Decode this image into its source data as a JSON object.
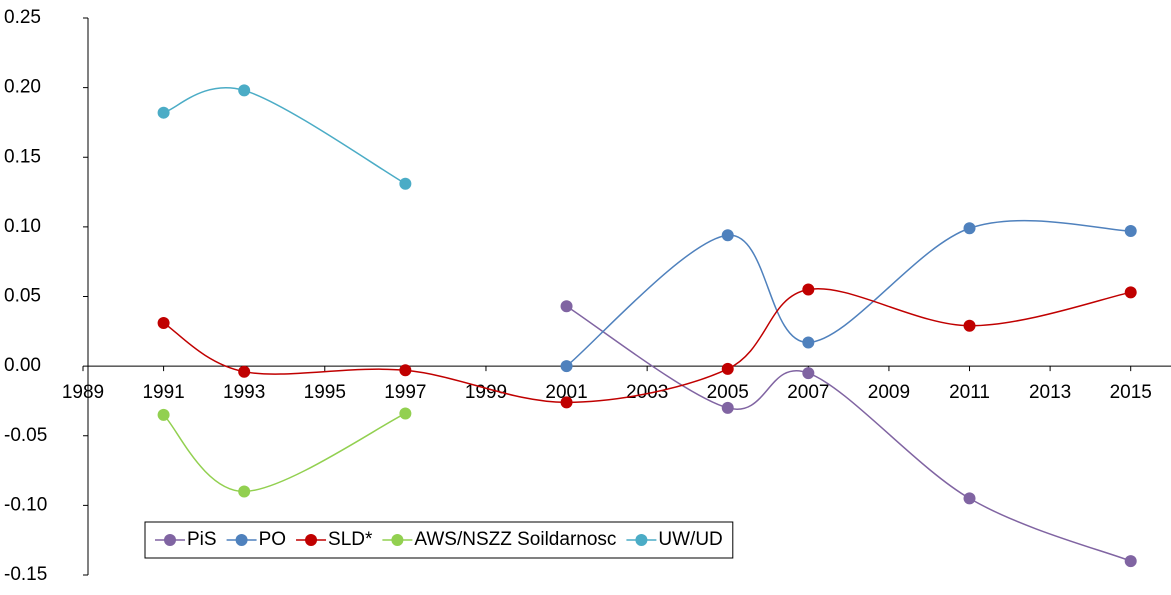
{
  "chart_data": {
    "type": "line",
    "smooth": true,
    "x": [
      1991,
      1993,
      1997,
      2001,
      2005,
      2007,
      2011,
      2015
    ],
    "xlim": [
      1989,
      2016
    ],
    "xticks": [
      1989,
      1991,
      1993,
      1995,
      1997,
      1999,
      2001,
      2003,
      2005,
      2007,
      2009,
      2011,
      2013,
      2015
    ],
    "ylim": [
      -0.15,
      0.25
    ],
    "yticks": [
      {
        "value": -0.15,
        "label": "-0.15"
      },
      {
        "value": -0.1,
        "label": "-0.10"
      },
      {
        "value": -0.05,
        "label": "-0.05"
      },
      {
        "value": 0,
        "label": "0.00"
      },
      {
        "value": 0.05,
        "label": "0.05"
      },
      {
        "value": 0.1,
        "label": "0.10"
      },
      {
        "value": 0.15,
        "label": "0.15"
      },
      {
        "value": 0.2,
        "label": "0.20"
      },
      {
        "value": 0.25,
        "label": "0.25"
      }
    ],
    "legend": "bottom-left",
    "series": [
      {
        "name": "PiS",
        "color": "#8064a2",
        "values": [
          null,
          null,
          null,
          0.043,
          -0.03,
          -0.005,
          -0.095,
          -0.14
        ]
      },
      {
        "name": "PO",
        "color": "#4f81bd",
        "values": [
          null,
          null,
          null,
          0.0,
          0.094,
          0.017,
          0.099,
          0.097
        ]
      },
      {
        "name": "SLD*",
        "color": "#c00000",
        "values": [
          0.031,
          -0.004,
          -0.003,
          -0.026,
          -0.002,
          0.055,
          0.029,
          0.053
        ]
      },
      {
        "name": "AWS/NSZZ Soildarnosc",
        "color": "#92d050",
        "values": [
          -0.035,
          -0.09,
          -0.034,
          null,
          null,
          null,
          null,
          null
        ]
      },
      {
        "name": "UW/UD",
        "color": "#4bacc6",
        "values": [
          0.182,
          0.198,
          0.131,
          null,
          null,
          null,
          null,
          null
        ]
      }
    ]
  }
}
